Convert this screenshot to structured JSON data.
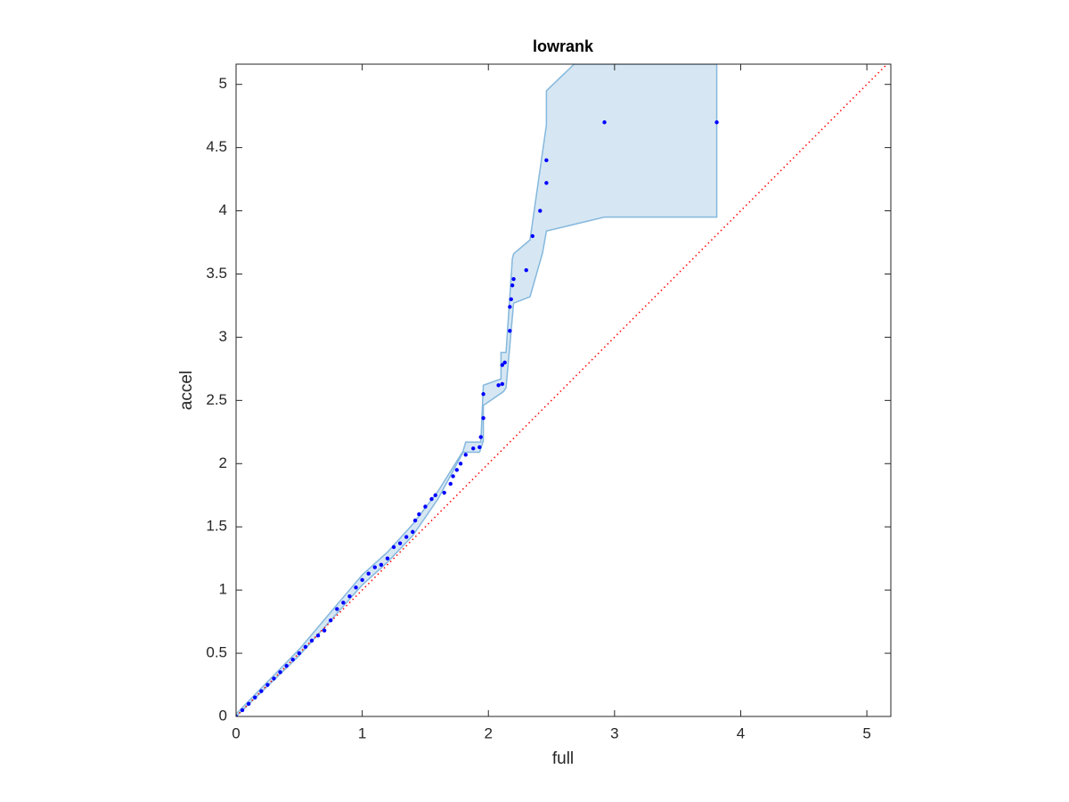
{
  "chart_data": {
    "type": "scatter",
    "title": "lowrank",
    "xlabel": "full",
    "ylabel": "accel",
    "xlim": [
      0,
      5.19
    ],
    "ylim": [
      0,
      5.16
    ],
    "xticks": [
      0,
      1,
      2,
      3,
      4,
      5
    ],
    "yticks": [
      0,
      0.5,
      1,
      1.5,
      2,
      2.5,
      3,
      3.5,
      4,
      4.5,
      5
    ],
    "series": [
      {
        "color": "#0000ff",
        "x": [
          0,
          0.05,
          0.1,
          0.15,
          0.2,
          0.25,
          0.3,
          0.35,
          0.4,
          0.45,
          0.5,
          0.55,
          0.6,
          0.65,
          0.7,
          0.75,
          0.8,
          0.85,
          0.9,
          0.95,
          1.0,
          1.05,
          1.1,
          1.15,
          1.2,
          1.25,
          1.3,
          1.35,
          1.4,
          1.42,
          1.45,
          1.5,
          1.55,
          1.58,
          1.65,
          1.7,
          1.72,
          1.75,
          1.78,
          1.82,
          1.88,
          1.93,
          1.94,
          1.96,
          1.96,
          2.08,
          2.11,
          2.11,
          2.13,
          2.17,
          2.17,
          2.18,
          2.19,
          2.2,
          2.3,
          2.35,
          2.41,
          2.46,
          2.46,
          2.92,
          3.81
        ],
        "values": [
          0,
          0.05,
          0.1,
          0.15,
          0.2,
          0.25,
          0.3,
          0.35,
          0.4,
          0.45,
          0.5,
          0.55,
          0.6,
          0.64,
          0.68,
          0.76,
          0.85,
          0.9,
          0.95,
          1.02,
          1.08,
          1.13,
          1.18,
          1.2,
          1.25,
          1.34,
          1.37,
          1.42,
          1.46,
          1.55,
          1.6,
          1.66,
          1.72,
          1.75,
          1.77,
          1.84,
          1.9,
          1.95,
          2.0,
          2.07,
          2.12,
          2.13,
          2.21,
          2.36,
          2.55,
          2.62,
          2.63,
          2.78,
          2.8,
          3.05,
          3.24,
          3.3,
          3.41,
          3.46,
          3.53,
          3.8,
          4.0,
          4.22,
          4.4,
          4.7,
          4.7
        ]
      }
    ],
    "band": {
      "color": "#d6e7f3",
      "edge_color": "#85b8dd",
      "x_upper": [
        0,
        0.5,
        1.0,
        1.2,
        1.4,
        1.6,
        1.8,
        1.82,
        1.94,
        1.96,
        2.1,
        2.1,
        2.14,
        2.19,
        2.2,
        2.33,
        2.46,
        2.46,
        2.68,
        3.81
      ],
      "upper": [
        0.02,
        0.53,
        1.12,
        1.3,
        1.52,
        1.78,
        2.1,
        2.17,
        2.17,
        2.62,
        2.67,
        2.88,
        2.88,
        3.62,
        3.66,
        3.77,
        4.68,
        4.95,
        5.16,
        5.16
      ],
      "x_lower": [
        3.81,
        2.92,
        2.46,
        2.43,
        2.33,
        2.2,
        2.14,
        2.12,
        1.96,
        1.96,
        1.93,
        1.8,
        1.6,
        1.4,
        1.2,
        1.0,
        0.5,
        0
      ],
      "lower": [
        3.95,
        3.95,
        3.84,
        3.67,
        3.32,
        3.27,
        2.6,
        2.57,
        2.46,
        2.18,
        2.09,
        2.09,
        1.72,
        1.43,
        1.22,
        1.04,
        0.48,
        0
      ]
    },
    "reference": {
      "color": "#ff0000",
      "x": [
        0,
        5.19
      ],
      "values": [
        0,
        5.19
      ]
    }
  }
}
